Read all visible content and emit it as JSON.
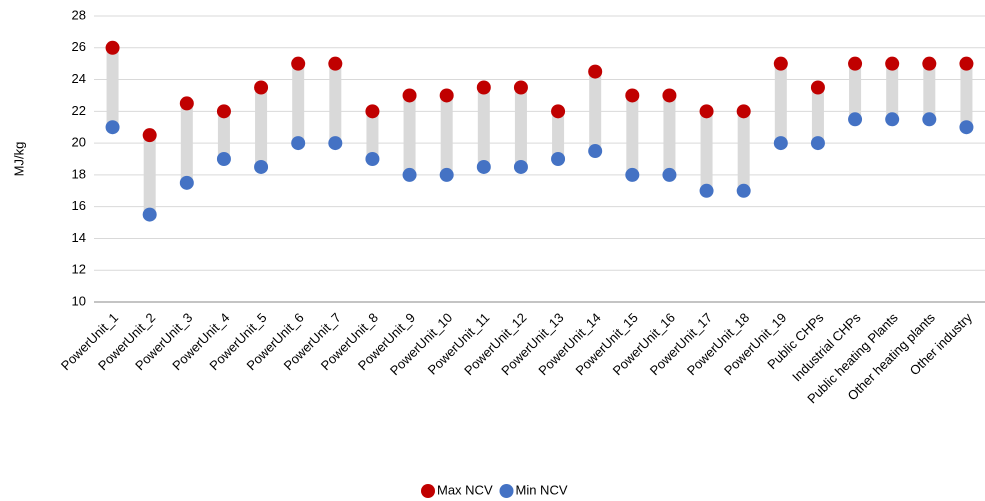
{
  "chart_data": {
    "type": "dumbbell",
    "ylabel": "MJ/kg",
    "categories": [
      "PowerUnit_1",
      "PowerUnit_2",
      "PowerUnit_3",
      "PowerUnit_4",
      "PowerUnit_5",
      "PowerUnit_6",
      "PowerUnit_7",
      "PowerUnit_8",
      "PowerUnit_9",
      "PowerUnit_10",
      "PowerUnit_11",
      "PowerUnit_12",
      "PowerUnit_13",
      "PowerUnit_14",
      "PowerUnit_15",
      "PowerUnit_16",
      "PowerUnit_17",
      "PowerUnit_18",
      "PowerUnit_19",
      "Public CHPs",
      "Industrial CHPs",
      "Public heating Plants",
      "Other heating plants",
      "Other industry"
    ],
    "series": [
      {
        "name": "Max NCV",
        "color": "#c00000",
        "values": [
          26,
          20.5,
          22.5,
          22,
          23.5,
          25,
          25,
          22,
          23,
          23,
          23.5,
          23.5,
          22,
          24.5,
          23,
          23,
          22,
          22,
          25,
          23.5,
          25,
          25,
          25,
          25
        ]
      },
      {
        "name": "Min NCV",
        "color": "#4472c4",
        "values": [
          21,
          15.5,
          17.5,
          19,
          18.5,
          20,
          20,
          19,
          18,
          18,
          18.5,
          18.5,
          19,
          19.5,
          18,
          18,
          17,
          17,
          20,
          20,
          21.5,
          21.5,
          21.5,
          21
        ]
      }
    ],
    "connector_color": "#d9d9d9",
    "ylim": [
      10,
      28
    ],
    "yticks": [
      10,
      12,
      14,
      16,
      18,
      20,
      22,
      24,
      26,
      28
    ],
    "grid": true,
    "legend": "bottom"
  }
}
